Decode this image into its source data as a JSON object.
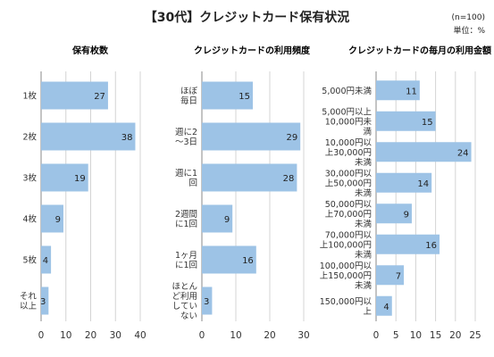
{
  "header": {
    "title": "【30代】クレジットカード保有状況",
    "n_label": "(n=100)",
    "unit_label": "単位：%"
  },
  "chart_data": [
    {
      "type": "bar",
      "orientation": "horizontal",
      "title": "保有枚数",
      "categories": [
        [
          "1枚"
        ],
        [
          "2枚"
        ],
        [
          "3枚"
        ],
        [
          "4枚"
        ],
        [
          "5枚"
        ],
        [
          "それ",
          "以上"
        ]
      ],
      "values": [
        27,
        38,
        19,
        9,
        4,
        3
      ],
      "xlim": [
        0,
        40
      ],
      "xticks": [
        0,
        10,
        20,
        30,
        40
      ],
      "grid": true,
      "bar_color": "#9dc3e6"
    },
    {
      "type": "bar",
      "orientation": "horizontal",
      "title": "クレジットカードの利用頻度",
      "categories": [
        [
          "ほぼ",
          "毎日"
        ],
        [
          "週に2",
          "～3日"
        ],
        [
          "週に1",
          "回"
        ],
        [
          "2週間",
          "に1回"
        ],
        [
          "1ヶ月",
          "に1回"
        ],
        [
          "ほとん",
          "ど利用",
          "してい",
          "ない"
        ]
      ],
      "values": [
        15,
        29,
        28,
        9,
        16,
        3
      ],
      "xlim": [
        0,
        30
      ],
      "xticks": [
        0,
        10,
        20,
        30
      ],
      "grid": true,
      "bar_color": "#9dc3e6"
    },
    {
      "type": "bar",
      "orientation": "horizontal",
      "title": "クレジットカードの毎月の利用金額",
      "categories": [
        [
          "5,000円未満"
        ],
        [
          "5,000円以上",
          "10,000円未",
          "満"
        ],
        [
          "10,000円以",
          "上30,000円",
          "未満"
        ],
        [
          "30,000円以",
          "上50,000円",
          "未満"
        ],
        [
          "50,000円以",
          "上70,000円",
          "未満"
        ],
        [
          "70,000円以",
          "上100,000円",
          "未満"
        ],
        [
          "100,000円以",
          "上150,000円",
          "未満"
        ],
        [
          "150,000円以",
          "上"
        ]
      ],
      "values": [
        11,
        15,
        24,
        14,
        9,
        16,
        7,
        4
      ],
      "xlim": [
        0,
        25
      ],
      "xticks": [
        0,
        5,
        10,
        15,
        20,
        25
      ],
      "grid": true,
      "bar_color": "#9dc3e6"
    }
  ]
}
